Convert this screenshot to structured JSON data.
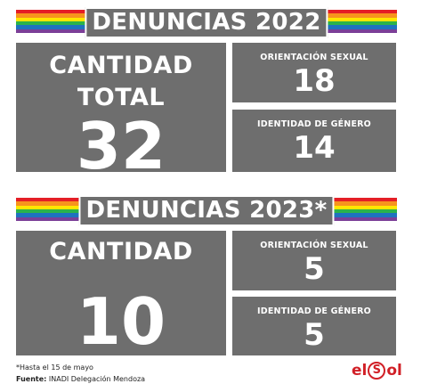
{
  "colors": {
    "card_bg": "#6e6e6e",
    "text": "#ffffff",
    "brand_red": "#d11f26",
    "rainbow": [
      "#e41e26",
      "#f7941d",
      "#ffe600",
      "#2bb34a",
      "#1e73be",
      "#7b3f98"
    ]
  },
  "section_2022": {
    "title": "DENUNCIAS 2022",
    "main_label_1": "CANTIDAD",
    "main_label_2": "TOTAL",
    "main_value": "32",
    "orientation_label": "ORIENTACIÓN SEXUAL",
    "orientation_value": "18",
    "identity_label": "IDENTIDAD DE GÉNERO",
    "identity_value": "14"
  },
  "section_2023": {
    "title": "DENUNCIAS 2023*",
    "main_label": "CANTIDAD",
    "main_value": "10",
    "orientation_label": "ORIENTACIÓN SEXUAL",
    "orientation_value": "5",
    "identity_label": "IDENTIDAD DE GÉNERO",
    "identity_value": "5"
  },
  "footnote": "*Hasta el 15 de mayo",
  "source_label": "Fuente:",
  "source_text": "INADI Delegación Mendoza",
  "logo": {
    "part1": "el",
    "ring": "S",
    "part2": "ol",
    "icon": "elsol-logo"
  }
}
